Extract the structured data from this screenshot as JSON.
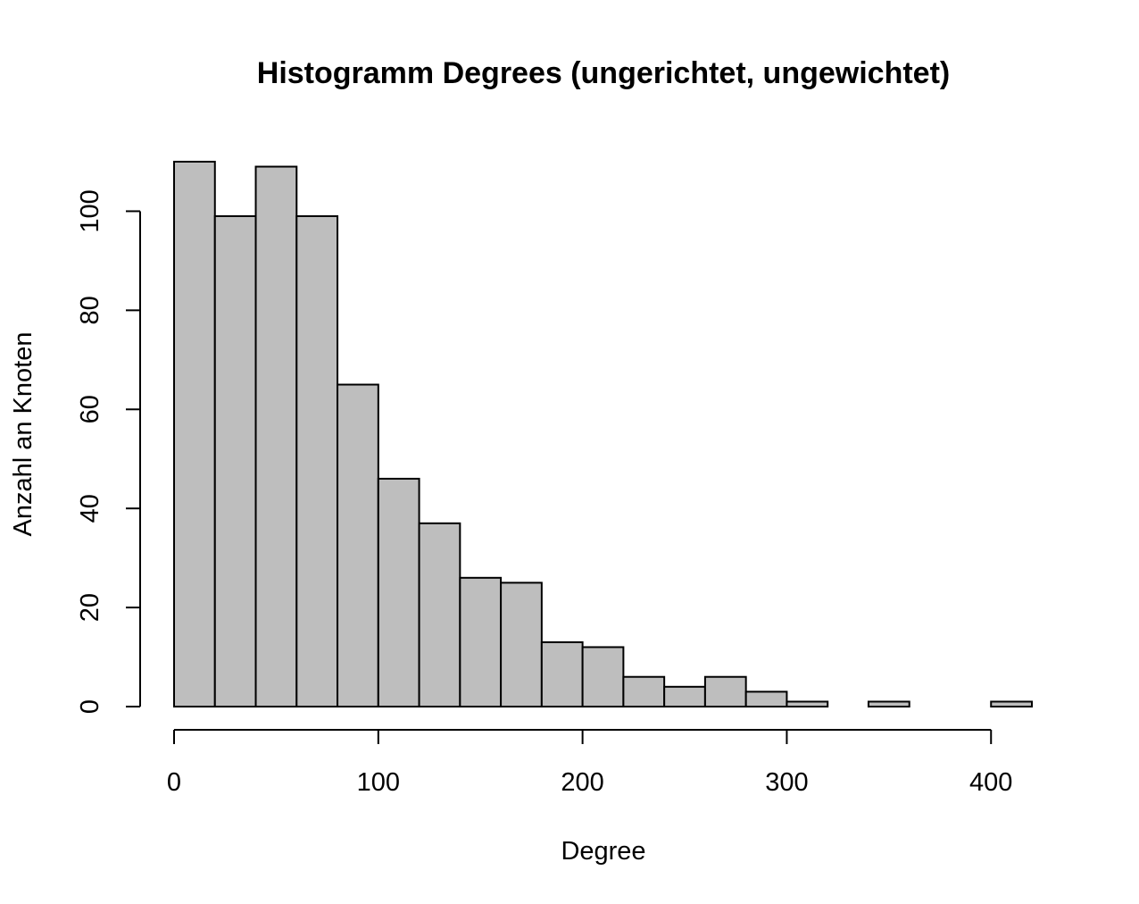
{
  "chart_data": {
    "type": "bar",
    "title": "Histogramm Degrees (ungerichtet, ungewichtet)",
    "xlabel": "Degree",
    "ylabel": "Anzahl an Knoten",
    "bin_width": 20,
    "bin_start": 0,
    "values": [
      110,
      99,
      109,
      99,
      65,
      46,
      37,
      26,
      25,
      13,
      12,
      6,
      4,
      6,
      3,
      1,
      0,
      1,
      0,
      0,
      1
    ],
    "xlim": [
      0,
      420
    ],
    "ylim": [
      0,
      110
    ],
    "x_ticks": [
      0,
      100,
      200,
      300,
      400
    ],
    "x_tick_labels": [
      "0",
      "100",
      "200",
      "300",
      "400"
    ],
    "y_ticks": [
      0,
      20,
      40,
      60,
      80,
      100
    ],
    "y_tick_labels": [
      "0",
      "20",
      "40",
      "60",
      "80",
      "100"
    ],
    "bar_fill": "#bebebe",
    "bar_stroke": "#000000",
    "grid": false
  }
}
